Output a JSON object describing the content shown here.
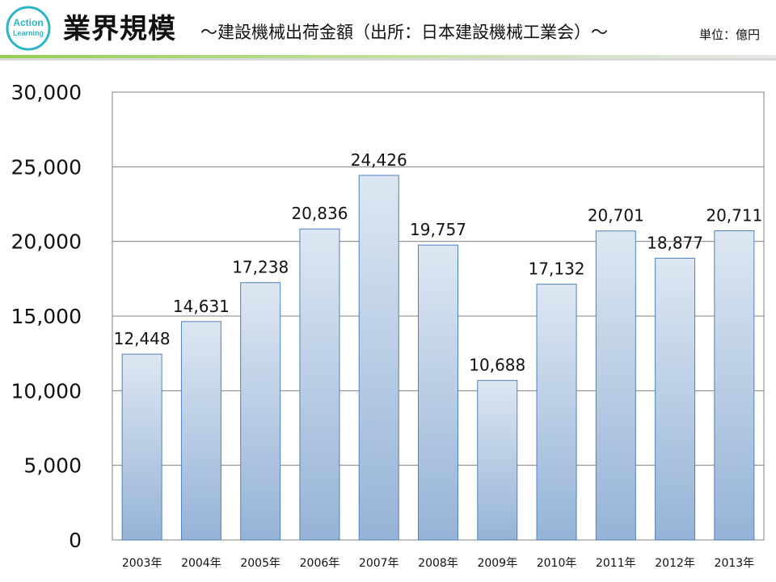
{
  "header": {
    "logo_text_1": "Action",
    "logo_text_2": "Learning",
    "title": "業界規模",
    "subtitle": "～建設機械出荷金額（出所：日本建設機械工業会）～",
    "unit": "単位：億円"
  },
  "colors": {
    "bar_top": "#dde7f2",
    "bar_bottom": "#95b3d7",
    "bar_stroke": "#4f81bd",
    "grid": "#808080",
    "rule_green": "#92d050",
    "rule_gray": "#bfbfbf",
    "logo": "#2bb5c8"
  },
  "chart_data": {
    "type": "bar",
    "title": "建設機械出荷金額",
    "ylabel": "億円",
    "xlabel": "",
    "categories": [
      "2003年",
      "2004年",
      "2005年",
      "2006年",
      "2007年",
      "2008年",
      "2009年",
      "2010年",
      "2011年",
      "2012年",
      "2013年"
    ],
    "values": [
      12448,
      14631,
      17238,
      20836,
      24426,
      19757,
      10688,
      17132,
      20701,
      18877,
      20711
    ],
    "value_labels": [
      "12,448",
      "14,631",
      "17,238",
      "20,836",
      "24,426",
      "19,757",
      "10,688",
      "17,132",
      "20,701",
      "18,877",
      "20,711"
    ],
    "ylim": [
      0,
      30000
    ],
    "yticks": [
      0,
      5000,
      10000,
      15000,
      20000,
      25000,
      30000
    ],
    "ytick_labels": [
      "0",
      "5,000",
      "10,000",
      "15,000",
      "20,000",
      "25,000",
      "30,000"
    ],
    "grid": true,
    "legend": "none"
  }
}
